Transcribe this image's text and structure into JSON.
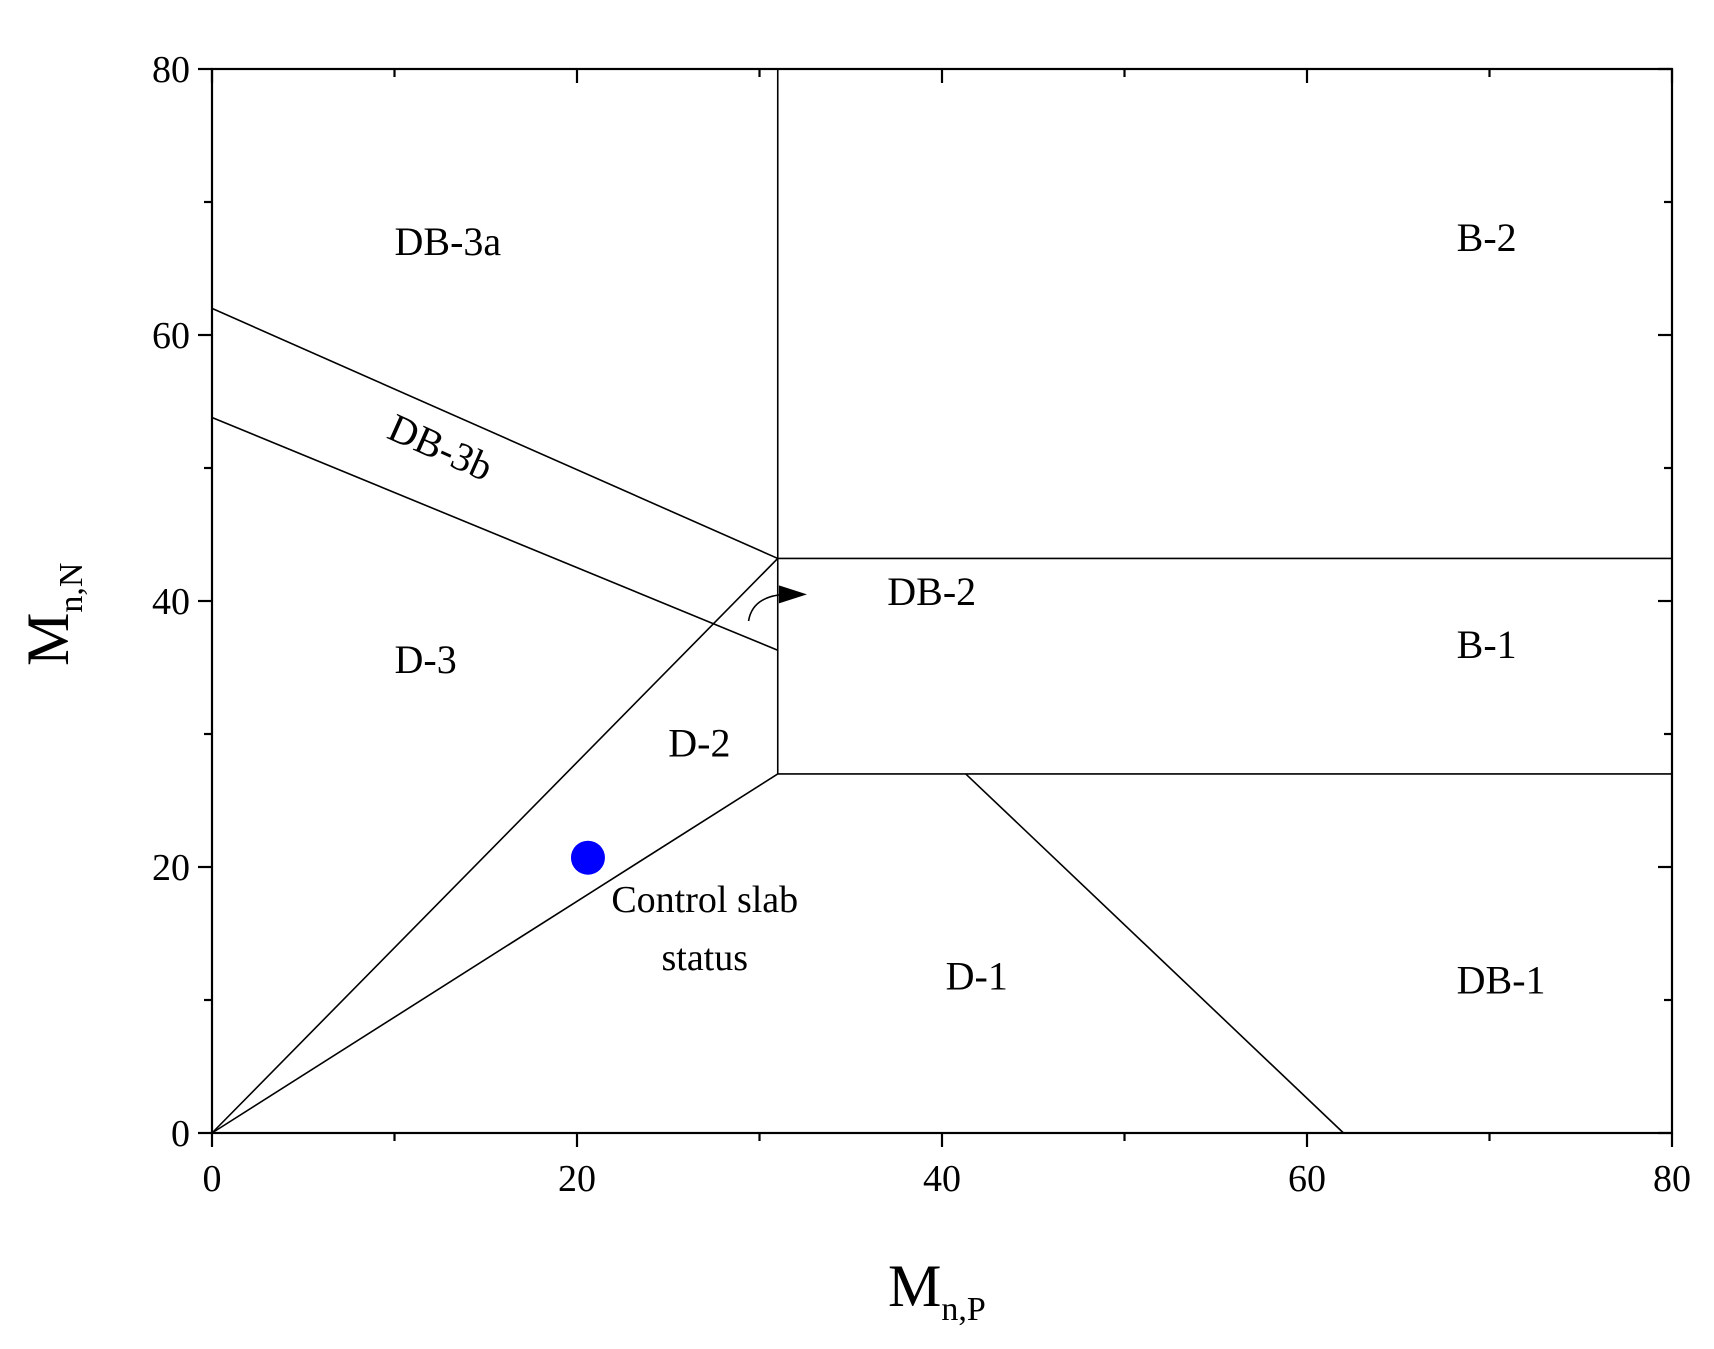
{
  "chart_data": {
    "type": "scatter",
    "title": "",
    "xlabel": {
      "main": "M",
      "sub": "n,P"
    },
    "ylabel": {
      "main": "M",
      "sub": "n,N"
    },
    "xlim": [
      0,
      80
    ],
    "ylim": [
      0,
      80
    ],
    "x_ticks": [
      0,
      20,
      40,
      60,
      80
    ],
    "y_ticks": [
      0,
      20,
      40,
      60,
      80
    ],
    "x_tick_labels": [
      "0",
      "20",
      "40",
      "60",
      "80"
    ],
    "y_tick_labels": [
      "0",
      "20",
      "40",
      "60",
      "80"
    ],
    "minor_tick_step": 10,
    "grid": false,
    "boundaries": [
      {
        "name": "vertical-divider",
        "points": [
          [
            31,
            80
          ],
          [
            31,
            27
          ]
        ]
      },
      {
        "name": "db3a-db3b-boundary",
        "points": [
          [
            0,
            62
          ],
          [
            31,
            43.2
          ]
        ]
      },
      {
        "name": "db3b-d3-boundary",
        "points": [
          [
            0,
            53.8
          ],
          [
            31,
            36.3
          ]
        ]
      },
      {
        "name": "d3-d2-boundary",
        "points": [
          [
            0,
            0
          ],
          [
            31,
            43.2
          ]
        ]
      },
      {
        "name": "d2-d1-boundary",
        "points": [
          [
            0,
            0
          ],
          [
            31,
            27
          ]
        ]
      },
      {
        "name": "b2-b1-boundary",
        "points": [
          [
            31,
            43.2
          ],
          [
            80,
            43.2
          ]
        ]
      },
      {
        "name": "b1-db1-boundary",
        "points": [
          [
            31,
            27
          ],
          [
            80,
            27
          ]
        ]
      },
      {
        "name": "d1-db1-boundary",
        "points": [
          [
            41.3,
            27
          ],
          [
            62,
            0
          ]
        ]
      }
    ],
    "regions": [
      {
        "label": "DB-3a",
        "x": 10,
        "y": 66
      },
      {
        "label": "DB-3b",
        "x": 9.5,
        "y": 52.3,
        "rotation": 24
      },
      {
        "label": "D-3",
        "x": 10,
        "y": 34.6
      },
      {
        "label": "D-2",
        "x": 25,
        "y": 28.3
      },
      {
        "label": "DB-2",
        "x": 37,
        "y": 39.7
      },
      {
        "label": "B-2",
        "x": 68.2,
        "y": 66.3
      },
      {
        "label": "B-1",
        "x": 68.2,
        "y": 35.7
      },
      {
        "label": "D-1",
        "x": 40.2,
        "y": 10.8
      },
      {
        "label": "DB-1",
        "x": 68.2,
        "y": 10.5
      }
    ],
    "arrow": {
      "from": [
        29.4,
        38.5
      ],
      "to": [
        32.6,
        40.5
      ]
    },
    "points": [
      {
        "x": 20.6,
        "y": 20.7,
        "color": "#0000ff"
      }
    ],
    "annotation": {
      "lines": [
        "Control slab",
        "status"
      ],
      "x": 27,
      "y": 16.6
    }
  }
}
